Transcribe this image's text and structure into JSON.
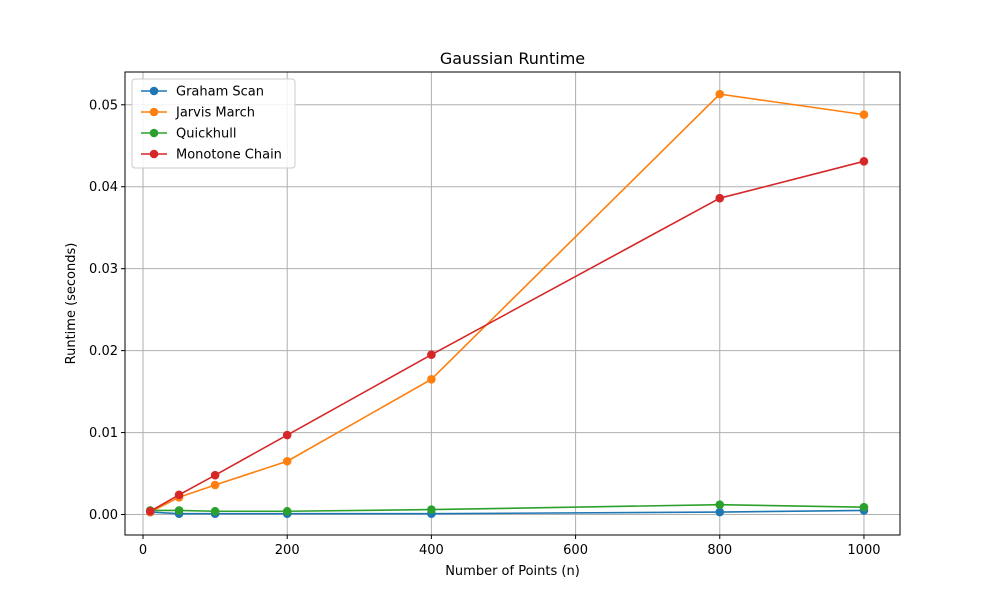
{
  "chart_data": {
    "type": "line",
    "title": "Gaussian Runtime",
    "xlabel": "Number of Points (n)",
    "ylabel": "Runtime (seconds)",
    "xlim": [
      -25,
      1050
    ],
    "ylim": [
      -0.0025,
      0.054
    ],
    "xticks": [
      0,
      200,
      400,
      600,
      800,
      1000
    ],
    "yticks": [
      0.0,
      0.01,
      0.02,
      0.03,
      0.04,
      0.05
    ],
    "ytick_labels": [
      "0.00",
      "0.01",
      "0.02",
      "0.03",
      "0.04",
      "0.05"
    ],
    "grid": true,
    "legend_position": "top-left",
    "x": [
      10,
      50,
      100,
      200,
      400,
      800,
      1000
    ],
    "series": [
      {
        "name": "Graham Scan",
        "color": "#1f77b4",
        "values": [
          0.0003,
          0.0001,
          0.0001,
          0.0001,
          0.0001,
          0.0003,
          0.0005
        ]
      },
      {
        "name": "Jarvis March",
        "color": "#ff7f0e",
        "values": [
          0.0003,
          0.0021,
          0.0036,
          0.0065,
          0.0165,
          0.0513,
          0.0488
        ]
      },
      {
        "name": "Quickhull",
        "color": "#2ca02c",
        "values": [
          0.0005,
          0.0005,
          0.0004,
          0.0004,
          0.0006,
          0.0012,
          0.0009
        ]
      },
      {
        "name": "Monotone Chain",
        "color": "#d62728",
        "values": [
          0.0004,
          0.0024,
          0.0048,
          0.0097,
          0.0195,
          0.0386,
          0.0431
        ]
      }
    ]
  }
}
